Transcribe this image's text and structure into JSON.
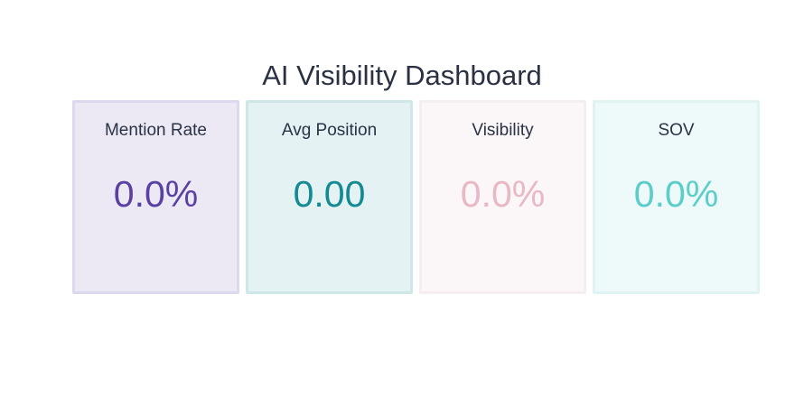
{
  "header": {
    "title": "AI Visibility Dashboard"
  },
  "cards": [
    {
      "label": "Mention Rate",
      "value": "0.0%"
    },
    {
      "label": "Avg Position",
      "value": "0.00"
    },
    {
      "label": "Visibility",
      "value": "0.0%"
    },
    {
      "label": "SOV",
      "value": "0.0%"
    }
  ]
}
